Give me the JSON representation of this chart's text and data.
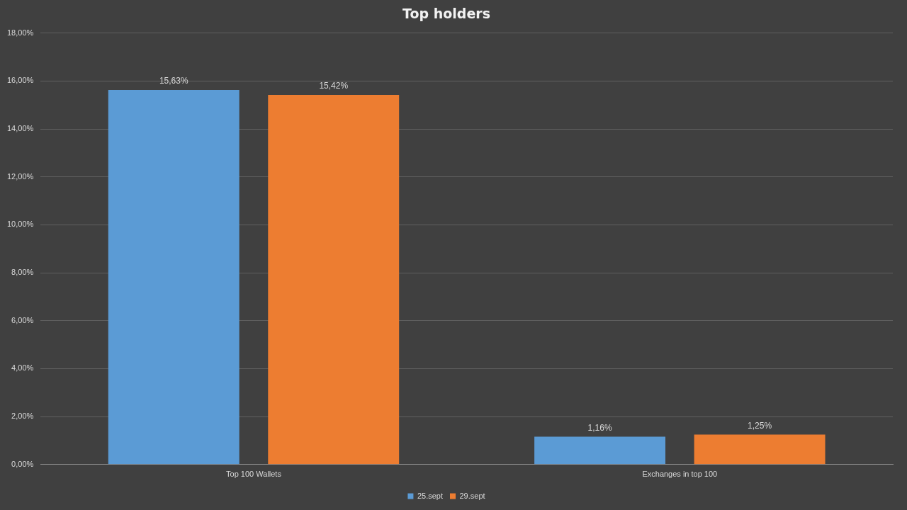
{
  "chart_data": {
    "type": "bar",
    "title": "Top holders",
    "categories": [
      "Top 100 Wallets",
      "Exchanges in top 100"
    ],
    "series": [
      {
        "name": "25.sept",
        "color": "#5b9bd5",
        "values": [
          15.63,
          1.16
        ],
        "value_labels": [
          "15,63%",
          "1,16%"
        ]
      },
      {
        "name": "29.sept",
        "color": "#ed7d31",
        "values": [
          15.42,
          1.25
        ],
        "value_labels": [
          "15,42%",
          "1,25%"
        ]
      }
    ],
    "ylim": [
      0,
      18
    ],
    "yticks": [
      {
        "value": 0,
        "label": "0,00%"
      },
      {
        "value": 2,
        "label": "2,00%"
      },
      {
        "value": 4,
        "label": "4,00%"
      },
      {
        "value": 6,
        "label": "6,00%"
      },
      {
        "value": 8,
        "label": "8,00%"
      },
      {
        "value": 10,
        "label": "10,00%"
      },
      {
        "value": 12,
        "label": "12,00%"
      },
      {
        "value": 14,
        "label": "14,00%"
      },
      {
        "value": 16,
        "label": "16,00%"
      },
      {
        "value": 18,
        "label": "18,00%"
      }
    ],
    "grid": "y",
    "legend": "bottom"
  }
}
